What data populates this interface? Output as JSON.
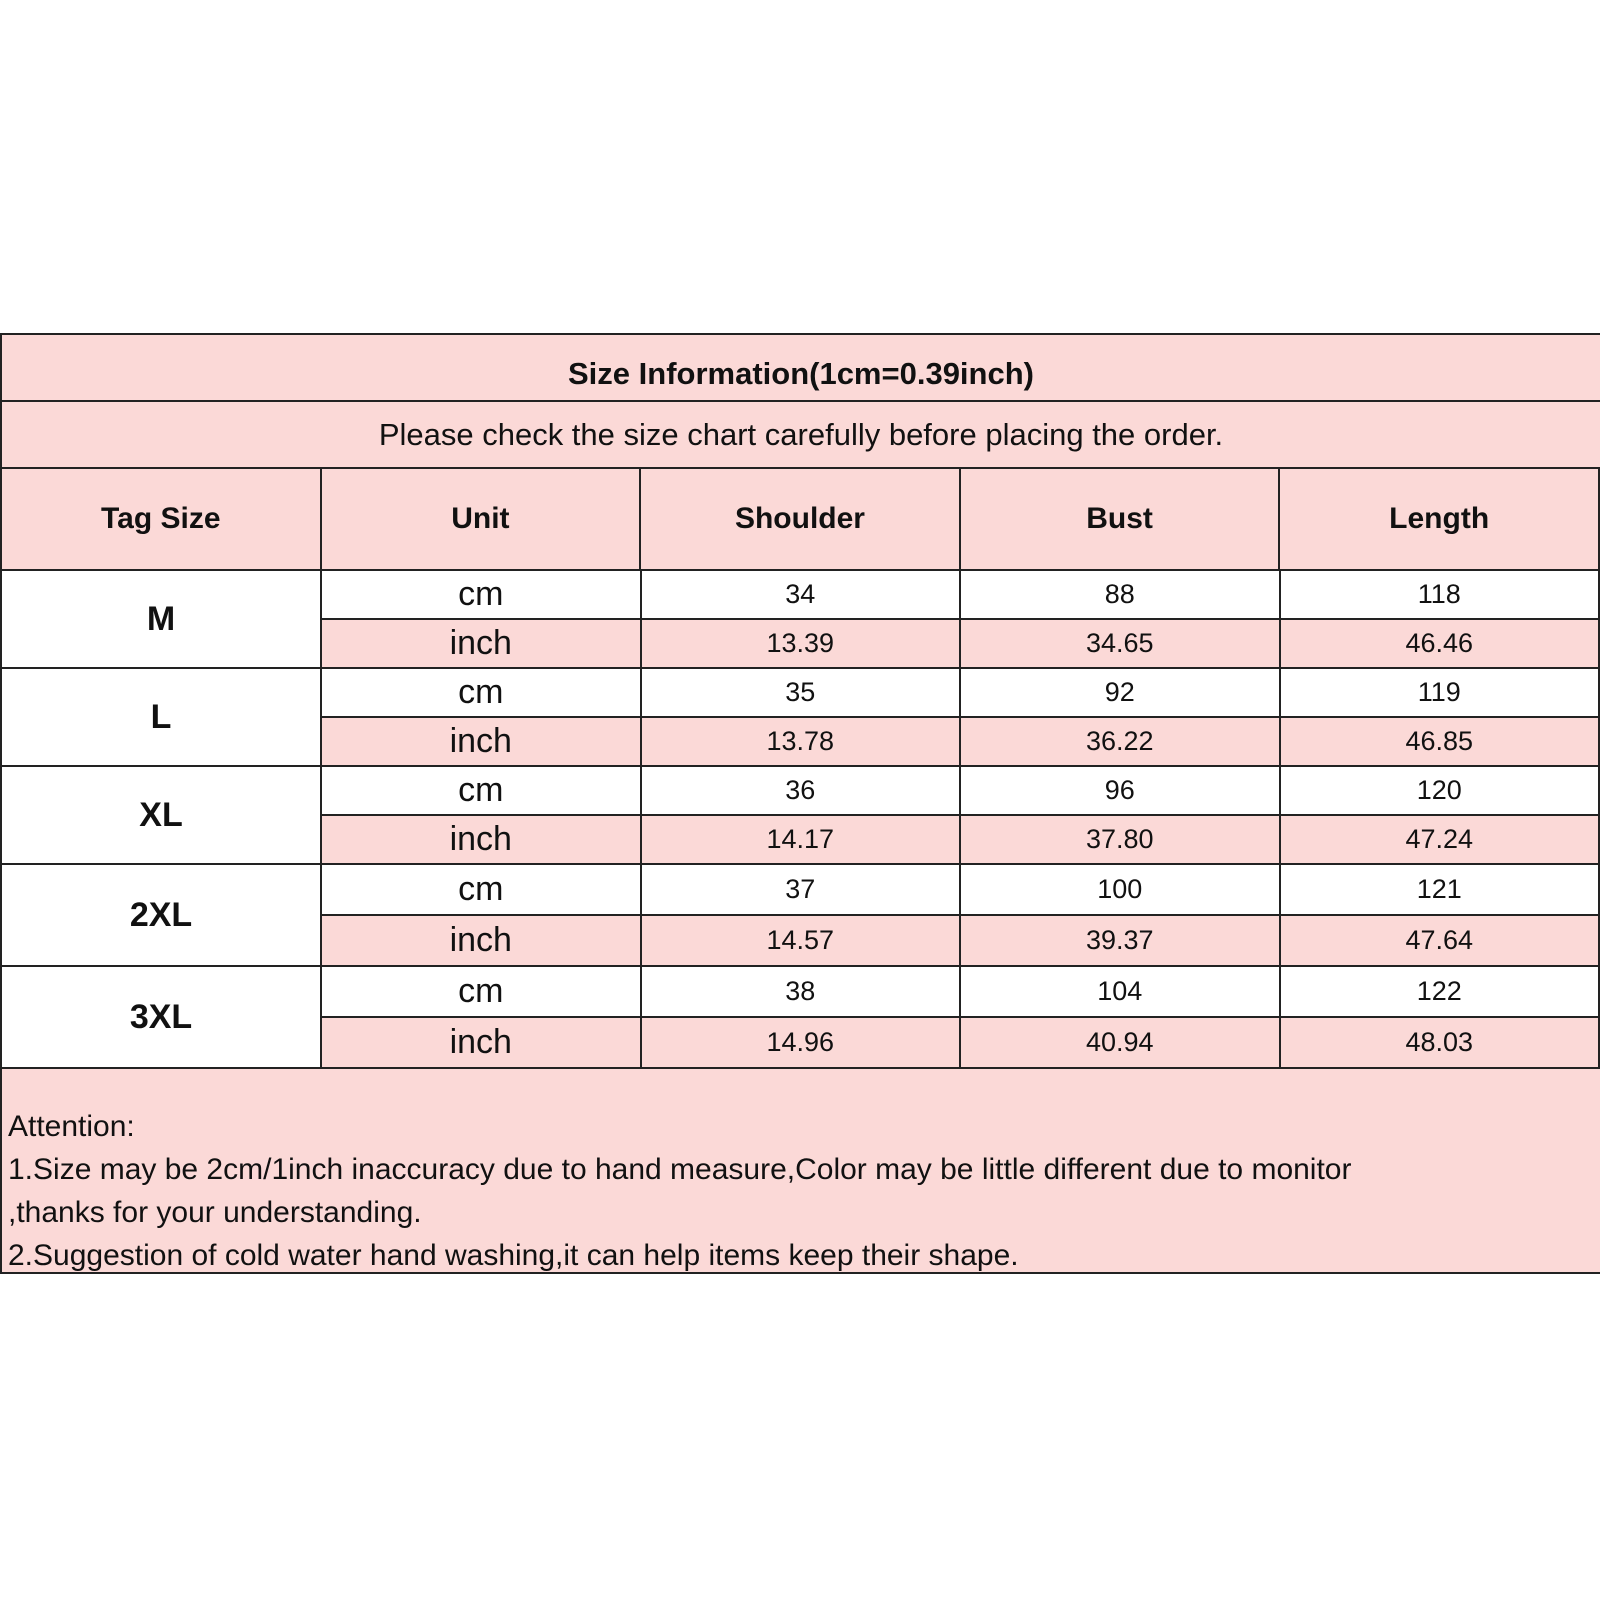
{
  "title": "Size Information(1cm=0.39inch)",
  "subtitle": "Please check the size chart carefully before placing the order.",
  "colors": {
    "pink": "#fbd9d7",
    "border": "#222222"
  },
  "headers": [
    "Tag Size",
    "Unit",
    "Shoulder",
    "Bust",
    "Length"
  ],
  "sizes": [
    {
      "tag": "M",
      "rows": [
        {
          "unit": "cm",
          "shoulder": "34",
          "bust": "88",
          "length": "118"
        },
        {
          "unit": "inch",
          "shoulder": "13.39",
          "bust": "34.65",
          "length": "46.46"
        }
      ]
    },
    {
      "tag": "L",
      "rows": [
        {
          "unit": "cm",
          "shoulder": "35",
          "bust": "92",
          "length": "119"
        },
        {
          "unit": "inch",
          "shoulder": "13.78",
          "bust": "36.22",
          "length": "46.85"
        }
      ]
    },
    {
      "tag": "XL",
      "rows": [
        {
          "unit": "cm",
          "shoulder": "36",
          "bust": "96",
          "length": "120"
        },
        {
          "unit": "inch",
          "shoulder": "14.17",
          "bust": "37.80",
          "length": "47.24"
        }
      ]
    },
    {
      "tag": "2XL",
      "rows": [
        {
          "unit": "cm",
          "shoulder": "37",
          "bust": "100",
          "length": "121"
        },
        {
          "unit": "inch",
          "shoulder": "14.57",
          "bust": "39.37",
          "length": "47.64"
        }
      ]
    },
    {
      "tag": "3XL",
      "rows": [
        {
          "unit": "cm",
          "shoulder": "38",
          "bust": "104",
          "length": "122"
        },
        {
          "unit": "inch",
          "shoulder": "14.96",
          "bust": "40.94",
          "length": "48.03"
        }
      ]
    }
  ],
  "attention": {
    "heading": "Attention:",
    "lines": [
      "1.Size may be 2cm/1inch inaccuracy due to hand measure,Color may be little different due to monitor",
      ",thanks for your understanding.",
      "2.Suggestion of cold water hand washing,it can help items keep their shape."
    ]
  }
}
